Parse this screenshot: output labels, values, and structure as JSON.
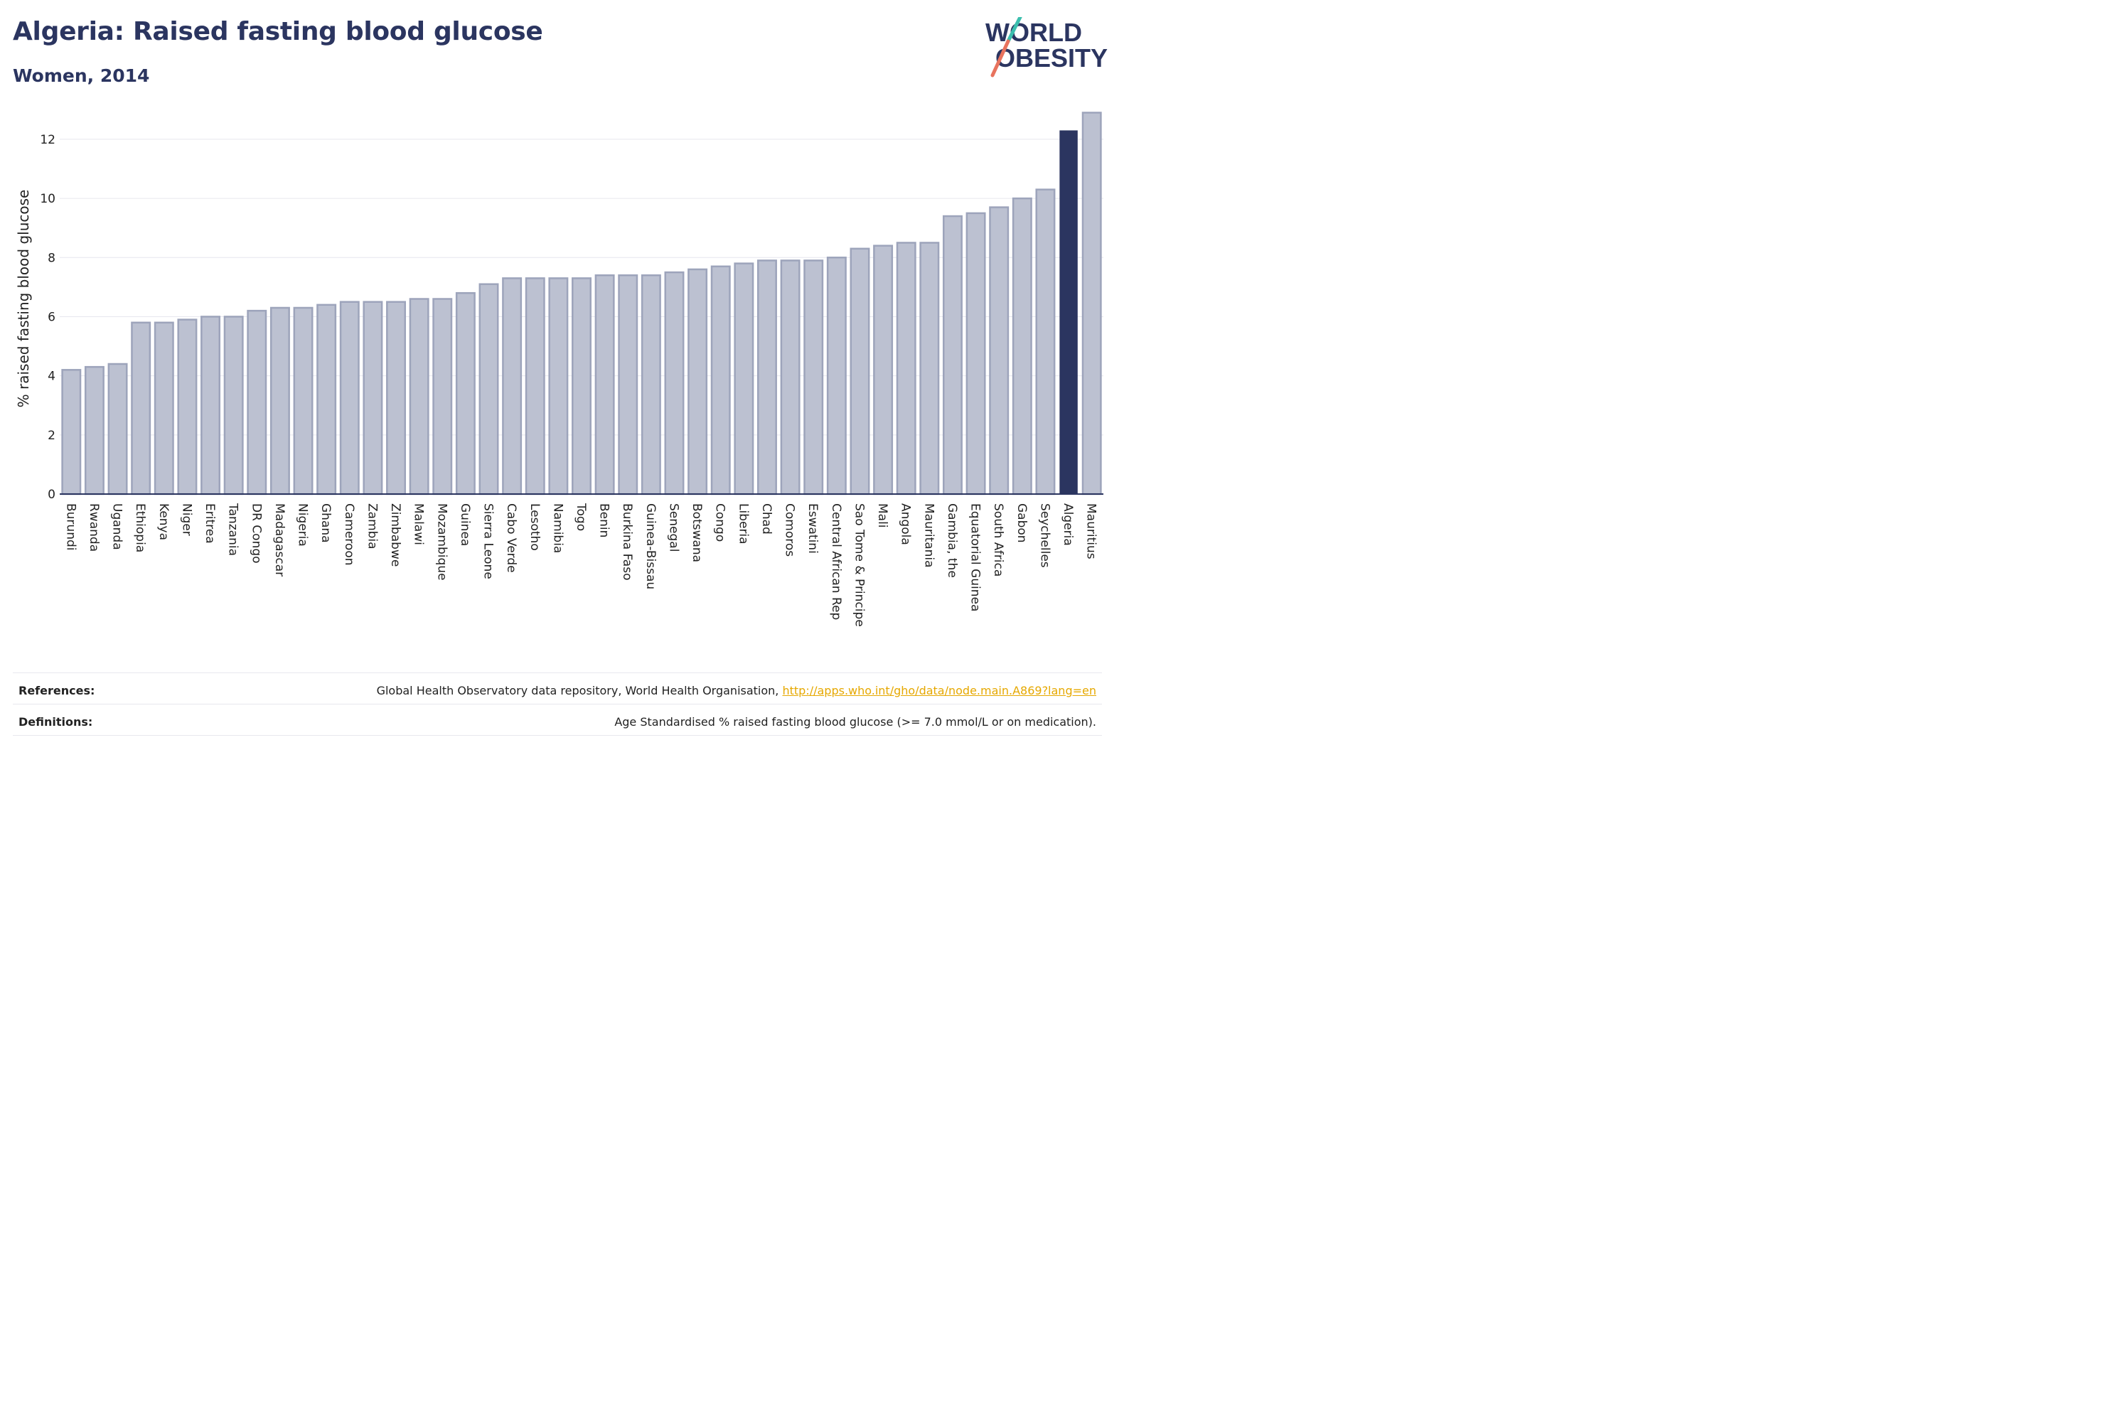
{
  "header": {
    "title": "Algeria: Raised fasting blood glucose",
    "subtitle": "Women, 2014"
  },
  "logo": {
    "line1": "WORLD",
    "line2": "OBESITY"
  },
  "colors": {
    "bar_fill": "#bcc1d1",
    "bar_stroke": "#9da4bb",
    "highlight": "#2b3560",
    "grid": "#e6e6ee",
    "text": "#2b3560",
    "logo_teal": "#3cbfae",
    "logo_coral": "#e8735e",
    "link": "#e6a800"
  },
  "chart_data": {
    "type": "bar",
    "ylabel": "% raised fasting blood glucose",
    "xlabel": "",
    "ylim": [
      0,
      13.2
    ],
    "yticks": [
      0,
      2,
      4,
      6,
      8,
      10,
      12
    ],
    "grid": true,
    "highlight": "Algeria",
    "categories": [
      "Burundi",
      "Rwanda",
      "Uganda",
      "Ethiopia",
      "Kenya",
      "Niger",
      "Eritrea",
      "Tanzania",
      "DR Congo",
      "Madagascar",
      "Nigeria",
      "Ghana",
      "Cameroon",
      "Zambia",
      "Zimbabwe",
      "Malawi",
      "Mozambique",
      "Guinea",
      "Sierra Leone",
      "Cabo Verde",
      "Lesotho",
      "Namibia",
      "Togo",
      "Benin",
      "Burkina Faso",
      "Guinea-Bissau",
      "Senegal",
      "Botswana",
      "Congo",
      "Liberia",
      "Chad",
      "Comoros",
      "Eswatini",
      "Central African Rep",
      "Sao Tome & Principe",
      "Mali",
      "Angola",
      "Mauritania",
      "Gambia, the",
      "Equatorial Guinea",
      "South Africa",
      "Gabon",
      "Seychelles",
      "Algeria",
      "Mauritius"
    ],
    "values": [
      4.2,
      4.3,
      4.4,
      5.8,
      5.8,
      5.9,
      6.0,
      6.0,
      6.2,
      6.3,
      6.3,
      6.4,
      6.5,
      6.5,
      6.5,
      6.6,
      6.6,
      6.8,
      7.1,
      7.3,
      7.3,
      7.3,
      7.3,
      7.4,
      7.4,
      7.4,
      7.5,
      7.6,
      7.7,
      7.8,
      7.9,
      7.9,
      7.9,
      8.0,
      8.3,
      8.4,
      8.5,
      8.5,
      9.4,
      9.5,
      9.7,
      10.0,
      10.3,
      12.3,
      12.9
    ]
  },
  "footer": {
    "references_label": "References:",
    "references_text": "Global Health Observatory data repository, World Health Organisation, ",
    "references_link": "http://apps.who.int/gho/data/node.main.A869?lang=en",
    "definitions_label": "Definitions:",
    "definitions_text": "Age Standardised % raised fasting blood glucose (>= 7.0 mmol/L or on medication)."
  }
}
